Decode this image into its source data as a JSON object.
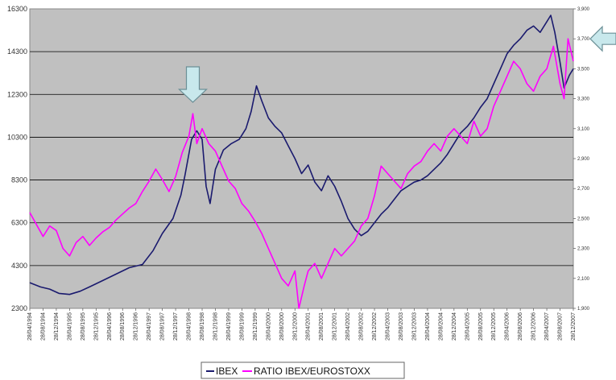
{
  "chart_data": {
    "type": "line",
    "title": "",
    "xlabel": "",
    "ylabel": "",
    "ylim_left": [
      2300,
      16300
    ],
    "ylim_right": [
      1900,
      3900
    ],
    "y_ticks_left": [
      "16300",
      "14300",
      "12300",
      "10300",
      "8300",
      "6300",
      "4300",
      "2300"
    ],
    "y_ticks_right": [
      "3,900",
      "3,700",
      "3,500",
      "3,300",
      "3,100",
      "2,900",
      "2,700",
      "2,500",
      "2,300",
      "2,100",
      "1,900"
    ],
    "x_ticks": [
      "28/04/1994",
      "28/08/1994",
      "28/12/1994",
      "28/04/1995",
      "28/08/1995",
      "28/12/1995",
      "28/04/1996",
      "28/08/1996",
      "28/12/1996",
      "28/04/1997",
      "28/08/1997",
      "28/12/1997",
      "28/04/1998",
      "28/08/1998",
      "28/12/1998",
      "28/04/1999",
      "28/08/1999",
      "28/12/1999",
      "28/04/2000",
      "28/08/2000",
      "28/12/2000",
      "28/04/2001",
      "28/08/2001",
      "28/12/2001",
      "28/04/2002",
      "28/08/2002",
      "28/12/2002",
      "28/04/2003",
      "28/08/2003",
      "28/12/2003",
      "28/04/2004",
      "28/08/2004",
      "28/12/2004",
      "28/04/2005",
      "28/08/2005",
      "28/12/2005",
      "28/04/2006",
      "28/08/2006",
      "28/12/2006",
      "28/04/2007",
      "28/08/2007",
      "28/12/2007"
    ],
    "grid": true,
    "legend_position": "bottom",
    "series": [
      {
        "name": "IBEX",
        "axis": "left",
        "color": "#1a1a6e",
        "points": [
          [
            0,
            3500
          ],
          [
            0.8,
            3300
          ],
          [
            1.5,
            3200
          ],
          [
            2.2,
            3000
          ],
          [
            3,
            2950
          ],
          [
            3.8,
            3100
          ],
          [
            4.5,
            3300
          ],
          [
            5.5,
            3600
          ],
          [
            6.5,
            3900
          ],
          [
            7.5,
            4200
          ],
          [
            8.5,
            4350
          ],
          [
            9.3,
            5000
          ],
          [
            10,
            5800
          ],
          [
            10.8,
            6500
          ],
          [
            11.4,
            7600
          ],
          [
            11.7,
            8500
          ],
          [
            12.2,
            10200
          ],
          [
            12.6,
            10600
          ],
          [
            13,
            10200
          ],
          [
            13.3,
            8000
          ],
          [
            13.6,
            7200
          ],
          [
            14,
            8800
          ],
          [
            14.6,
            9700
          ],
          [
            15.2,
            10000
          ],
          [
            15.8,
            10200
          ],
          [
            16.3,
            10700
          ],
          [
            16.7,
            11500
          ],
          [
            17.1,
            12700
          ],
          [
            17.5,
            12000
          ],
          [
            18,
            11200
          ],
          [
            18.5,
            10800
          ],
          [
            19,
            10500
          ],
          [
            19.5,
            9900
          ],
          [
            20,
            9300
          ],
          [
            20.5,
            8600
          ],
          [
            21,
            9000
          ],
          [
            21.5,
            8200
          ],
          [
            22,
            7800
          ],
          [
            22.5,
            8500
          ],
          [
            23,
            8000
          ],
          [
            23.5,
            7300
          ],
          [
            24,
            6500
          ],
          [
            24.5,
            6000
          ],
          [
            25,
            5700
          ],
          [
            25.5,
            5900
          ],
          [
            26,
            6300
          ],
          [
            26.5,
            6700
          ],
          [
            27,
            7000
          ],
          [
            27.5,
            7400
          ],
          [
            28,
            7800
          ],
          [
            28.5,
            8000
          ],
          [
            29,
            8200
          ],
          [
            29.5,
            8300
          ],
          [
            30,
            8500
          ],
          [
            30.5,
            8800
          ],
          [
            31,
            9100
          ],
          [
            31.5,
            9500
          ],
          [
            32,
            10000
          ],
          [
            32.5,
            10500
          ],
          [
            33,
            10800
          ],
          [
            33.5,
            11200
          ],
          [
            34,
            11700
          ],
          [
            34.5,
            12100
          ],
          [
            35,
            12800
          ],
          [
            35.5,
            13500
          ],
          [
            36,
            14200
          ],
          [
            36.5,
            14600
          ],
          [
            37,
            14900
          ],
          [
            37.5,
            15300
          ],
          [
            38,
            15500
          ],
          [
            38.5,
            15200
          ],
          [
            39,
            15700
          ],
          [
            39.3,
            16000
          ],
          [
            39.6,
            15200
          ],
          [
            40,
            13800
          ],
          [
            40.3,
            12600
          ],
          [
            40.7,
            13200
          ],
          [
            41,
            13500
          ]
        ]
      },
      {
        "name": "RATIO IBEX/EUROSTOXX",
        "axis": "right",
        "color": "#ff00ff",
        "points": [
          [
            0,
            2540
          ],
          [
            0.5,
            2460
          ],
          [
            1,
            2380
          ],
          [
            1.5,
            2450
          ],
          [
            2,
            2420
          ],
          [
            2.5,
            2300
          ],
          [
            3,
            2250
          ],
          [
            3.5,
            2340
          ],
          [
            4,
            2380
          ],
          [
            4.5,
            2320
          ],
          [
            5,
            2370
          ],
          [
            5.5,
            2410
          ],
          [
            6,
            2440
          ],
          [
            6.5,
            2490
          ],
          [
            7,
            2530
          ],
          [
            7.5,
            2570
          ],
          [
            8,
            2600
          ],
          [
            8.5,
            2680
          ],
          [
            9,
            2750
          ],
          [
            9.5,
            2830
          ],
          [
            10,
            2760
          ],
          [
            10.5,
            2680
          ],
          [
            11,
            2780
          ],
          [
            11.5,
            2940
          ],
          [
            12,
            3050
          ],
          [
            12.3,
            3200
          ],
          [
            12.6,
            3000
          ],
          [
            13,
            3100
          ],
          [
            13.5,
            3000
          ],
          [
            14,
            2950
          ],
          [
            14.5,
            2850
          ],
          [
            15,
            2750
          ],
          [
            15.5,
            2700
          ],
          [
            16,
            2600
          ],
          [
            16.5,
            2550
          ],
          [
            17,
            2480
          ],
          [
            17.5,
            2400
          ],
          [
            18,
            2300
          ],
          [
            18.5,
            2200
          ],
          [
            19,
            2100
          ],
          [
            19.5,
            2050
          ],
          [
            20,
            2150
          ],
          [
            20.3,
            1900
          ],
          [
            20.7,
            2050
          ],
          [
            21,
            2150
          ],
          [
            21.5,
            2200
          ],
          [
            22,
            2100
          ],
          [
            22.5,
            2200
          ],
          [
            23,
            2300
          ],
          [
            23.5,
            2250
          ],
          [
            24,
            2300
          ],
          [
            24.5,
            2350
          ],
          [
            25,
            2450
          ],
          [
            25.5,
            2500
          ],
          [
            26,
            2650
          ],
          [
            26.5,
            2850
          ],
          [
            27,
            2800
          ],
          [
            27.5,
            2750
          ],
          [
            28,
            2700
          ],
          [
            28.5,
            2800
          ],
          [
            29,
            2850
          ],
          [
            29.5,
            2880
          ],
          [
            30,
            2950
          ],
          [
            30.5,
            3000
          ],
          [
            31,
            2950
          ],
          [
            31.5,
            3050
          ],
          [
            32,
            3100
          ],
          [
            32.5,
            3050
          ],
          [
            33,
            3000
          ],
          [
            33.5,
            3150
          ],
          [
            34,
            3050
          ],
          [
            34.5,
            3100
          ],
          [
            35,
            3250
          ],
          [
            35.5,
            3350
          ],
          [
            36,
            3450
          ],
          [
            36.5,
            3550
          ],
          [
            37,
            3500
          ],
          [
            37.5,
            3400
          ],
          [
            38,
            3350
          ],
          [
            38.5,
            3450
          ],
          [
            39,
            3500
          ],
          [
            39.5,
            3650
          ],
          [
            40,
            3400
          ],
          [
            40.3,
            3300
          ],
          [
            40.6,
            3700
          ],
          [
            41,
            3550
          ]
        ]
      }
    ],
    "annotations": [
      {
        "type": "down-arrow",
        "x": 12.3
      },
      {
        "type": "left-arrow",
        "y_right": 3700
      }
    ]
  }
}
